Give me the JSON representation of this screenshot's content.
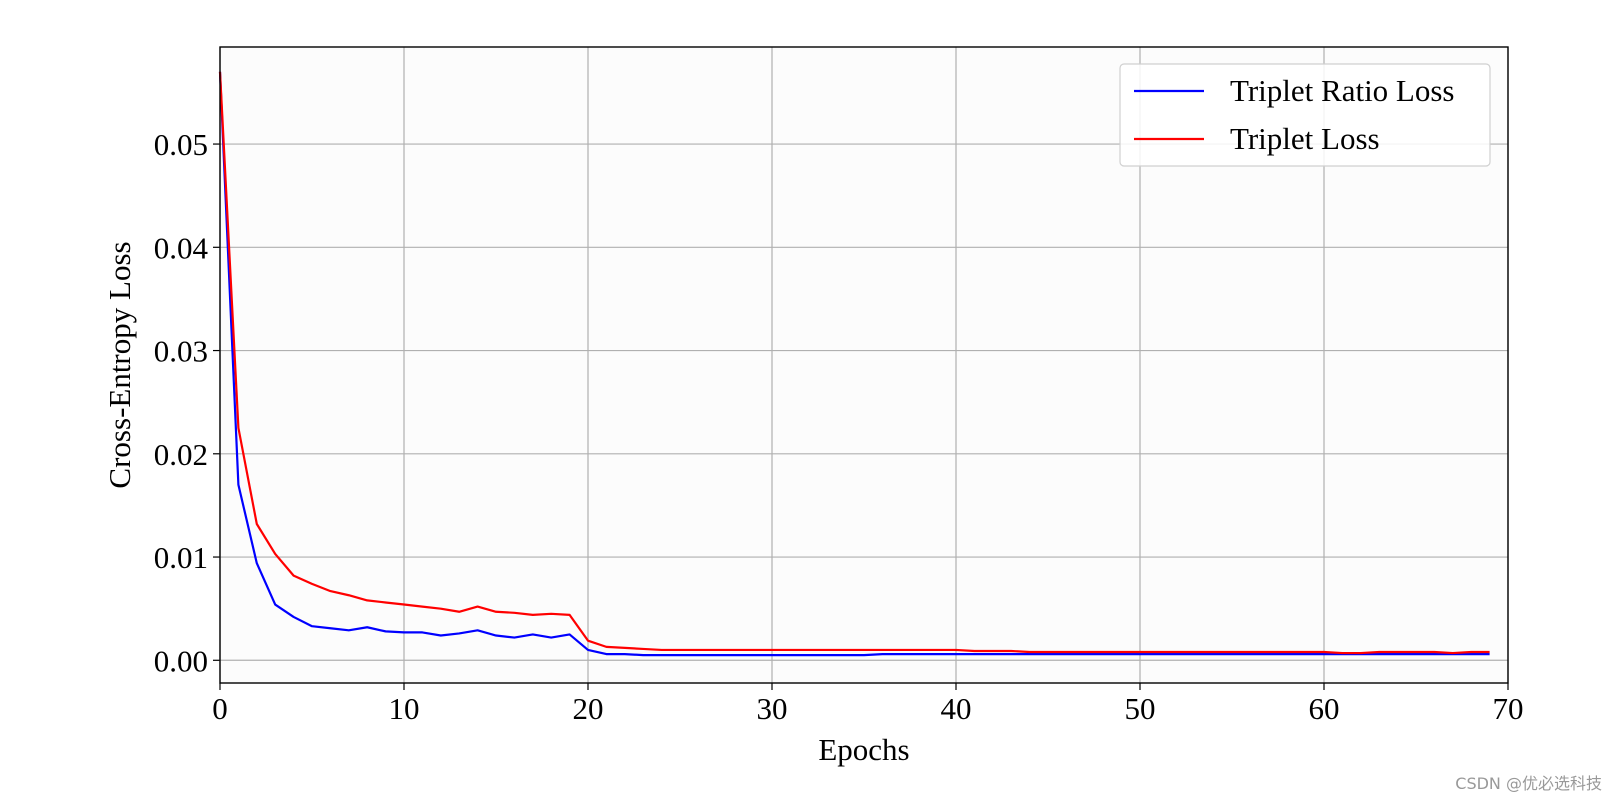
{
  "chart_data": {
    "type": "line",
    "xlabel": "Epochs",
    "ylabel": "Cross-Entropy Loss",
    "x": [
      0,
      1,
      2,
      3,
      4,
      5,
      6,
      7,
      8,
      9,
      10,
      11,
      12,
      13,
      14,
      15,
      16,
      17,
      18,
      19,
      20,
      21,
      22,
      23,
      24,
      25,
      26,
      27,
      28,
      29,
      30,
      31,
      32,
      33,
      34,
      35,
      36,
      37,
      38,
      39,
      40,
      41,
      42,
      43,
      44,
      45,
      46,
      47,
      48,
      49,
      50,
      51,
      52,
      53,
      54,
      55,
      56,
      57,
      58,
      59,
      60,
      61,
      62,
      63,
      64,
      65,
      66,
      67,
      68,
      69
    ],
    "series": [
      {
        "name": "Triplet Ratio Loss",
        "color": "#0000ff",
        "values": [
          0.057,
          0.017,
          0.0094,
          0.0054,
          0.0042,
          0.0033,
          0.0031,
          0.0029,
          0.0032,
          0.0028,
          0.0027,
          0.0027,
          0.0024,
          0.0026,
          0.0029,
          0.0024,
          0.0022,
          0.0025,
          0.0022,
          0.0025,
          0.001,
          0.0006,
          0.0006,
          0.0005,
          0.0005,
          0.0005,
          0.0005,
          0.0005,
          0.0005,
          0.0005,
          0.0005,
          0.0005,
          0.0005,
          0.0005,
          0.0005,
          0.0005,
          0.0006,
          0.0006,
          0.0006,
          0.0006,
          0.0006,
          0.0006,
          0.0006,
          0.0006,
          0.0006,
          0.0006,
          0.0006,
          0.0006,
          0.0006,
          0.0006,
          0.0006,
          0.0006,
          0.0006,
          0.0006,
          0.0006,
          0.0006,
          0.0006,
          0.0006,
          0.0006,
          0.0006,
          0.0006,
          0.0006,
          0.0006,
          0.0006,
          0.0006,
          0.0006,
          0.0006,
          0.0006,
          0.0006,
          0.0006
        ]
      },
      {
        "name": "Triplet Loss",
        "color": "#ff0000",
        "values": [
          0.057,
          0.0225,
          0.0132,
          0.0103,
          0.0082,
          0.0074,
          0.0067,
          0.0063,
          0.0058,
          0.0056,
          0.0054,
          0.0052,
          0.005,
          0.0047,
          0.0052,
          0.0047,
          0.0046,
          0.0044,
          0.0045,
          0.0044,
          0.0019,
          0.0013,
          0.0012,
          0.0011,
          0.001,
          0.001,
          0.001,
          0.001,
          0.001,
          0.001,
          0.001,
          0.001,
          0.001,
          0.001,
          0.001,
          0.001,
          0.001,
          0.001,
          0.001,
          0.001,
          0.001,
          0.0009,
          0.0009,
          0.0009,
          0.0008,
          0.0008,
          0.0008,
          0.0008,
          0.0008,
          0.0008,
          0.0008,
          0.0008,
          0.0008,
          0.0008,
          0.0008,
          0.0008,
          0.0008,
          0.0008,
          0.0008,
          0.0008,
          0.0008,
          0.0007,
          0.0007,
          0.0008,
          0.0008,
          0.0008,
          0.0008,
          0.0007,
          0.0008,
          0.0008
        ]
      }
    ],
    "xlim": [
      0,
      70
    ],
    "xticks": [
      0,
      10,
      20,
      30,
      40,
      50,
      60,
      70
    ],
    "ylim": [
      -0.0022,
      0.0594
    ],
    "yticks": [
      {
        "value": 0,
        "label": "0.00"
      },
      0.01,
      0.02,
      0.03,
      0.04,
      0.05
    ],
    "grid": true,
    "legend": "upper right"
  },
  "watermark": "CSDN @优必选科技"
}
